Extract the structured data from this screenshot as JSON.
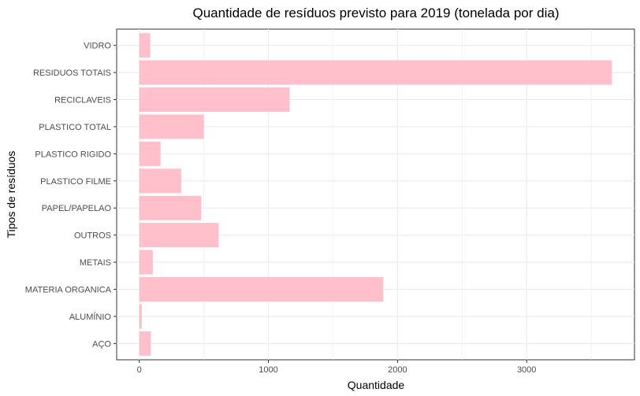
{
  "chart_data": {
    "type": "bar",
    "orientation": "horizontal",
    "title": "Quantidade de resíduos previsto para 2019 (tonelada por dia)",
    "xlabel": "Quantidade",
    "ylabel": "Tipos de resíduos",
    "categories": [
      "VIDRO",
      "RESIDUOS TOTAIS",
      "RECICLAVEIS",
      "PLASTICO TOTAL",
      "PLASTICO RIGIDO",
      "PLASTICO FILME",
      "PAPEL/PAPELAO",
      "OUTROS",
      "METAIS",
      "MATERIA ORGANICA",
      "ALUMÍNIO",
      "AÇO"
    ],
    "values": [
      85,
      3660,
      1165,
      500,
      165,
      325,
      480,
      615,
      105,
      1890,
      20,
      90
    ],
    "x_ticks": [
      0,
      1000,
      2000,
      3000
    ],
    "xlim": [
      -175,
      3835
    ],
    "bar_color": "#ffc0cb",
    "grid": true,
    "legend": "none"
  }
}
